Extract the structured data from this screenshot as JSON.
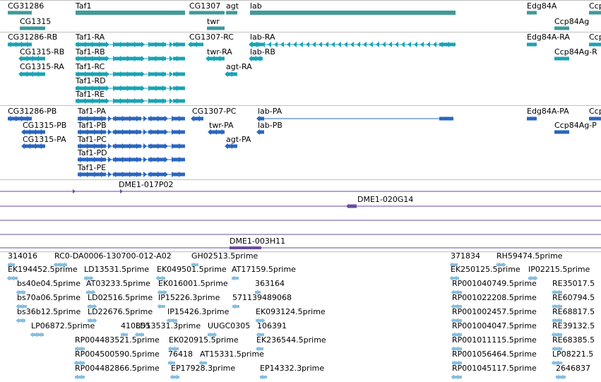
{
  "colors": {
    "gene": "#3f9a9a",
    "transcript": "#1aa3b4",
    "protein": "#2a66c0",
    "clone": "#6a4aa0",
    "est": "#86bfe0",
    "divider": "#c0c0c0"
  },
  "tracks": {
    "genes": [
      {
        "label": "CG31286"
      },
      {
        "label": "Taf1"
      },
      {
        "label": "CG1307"
      },
      {
        "label": "agt"
      },
      {
        "label": "lab"
      },
      {
        "label": "Edg84A"
      },
      {
        "label": "Ccp"
      },
      {
        "label": "CG1315"
      },
      {
        "label": "twr"
      },
      {
        "label": "Ccp84Ag"
      }
    ],
    "transcripts": [
      {
        "label": "CG31286-RB"
      },
      {
        "label": "Taf1-RA"
      },
      {
        "label": "CG1307-RC"
      },
      {
        "label": "lab-RA"
      },
      {
        "label": "Edg84A-RA"
      },
      {
        "label": "Ccp"
      },
      {
        "label": "CG1315-RB"
      },
      {
        "label": "Taf1-RB"
      },
      {
        "label": "twr-RA"
      },
      {
        "label": "lab-RB"
      },
      {
        "label": "Ccp84Ag-R"
      },
      {
        "label": "CG1315-RA"
      },
      {
        "label": "Taf1-RC"
      },
      {
        "label": "agt-RA"
      },
      {
        "label": "Taf1-RD"
      },
      {
        "label": "Taf1-RE"
      }
    ],
    "proteins": [
      {
        "label": "CG31286-PB"
      },
      {
        "label": "Taf1-PA"
      },
      {
        "label": "CG1307-PC"
      },
      {
        "label": "lab-PA"
      },
      {
        "label": "Edg84A-PA"
      },
      {
        "label": "Ccp"
      },
      {
        "label": "CG1315-PB"
      },
      {
        "label": "Taf1-PB"
      },
      {
        "label": "twr-PA"
      },
      {
        "label": "lab-PB"
      },
      {
        "label": "Ccp84Ag-P"
      },
      {
        "label": "CG1315-PA"
      },
      {
        "label": "Taf1-PC"
      },
      {
        "label": "agt-PA"
      },
      {
        "label": "Taf1-PD"
      },
      {
        "label": "Taf1-PE"
      }
    ],
    "clones": [
      {
        "label": "DME1-017P02"
      },
      {
        "label": "DME1-020G14"
      },
      {
        "label": "DME1-003H11"
      }
    ],
    "ests": [
      {
        "label": "314016"
      },
      {
        "label": "RC0-DA0006-130700-012-A02"
      },
      {
        "label": "GH02513.5prime"
      },
      {
        "label": "371834"
      },
      {
        "label": "RH59474.5prime"
      },
      {
        "label": "EK194452.5prime"
      },
      {
        "label": "LD13531.5prime"
      },
      {
        "label": "EK049501.5prime"
      },
      {
        "label": "AT17159.5prime"
      },
      {
        "label": "EK250125.5prime"
      },
      {
        "label": "IP02215.5prime"
      },
      {
        "label": "bs40e04.5prime"
      },
      {
        "label": "AT03233.5prime"
      },
      {
        "label": "EK016001.5prime"
      },
      {
        "label": "363164"
      },
      {
        "label": "RP001040749.5prime"
      },
      {
        "label": "RE35017.5"
      },
      {
        "label": "bs70a06.5prime"
      },
      {
        "label": "LD02516.5prime"
      },
      {
        "label": "IP15226.3prime"
      },
      {
        "label": "571139489068"
      },
      {
        "label": "RP001022208.5prime"
      },
      {
        "label": "RE60794.5"
      },
      {
        "label": "bs36b12.5prime"
      },
      {
        "label": "LD22676.5prime"
      },
      {
        "label": "IP15426.3prime"
      },
      {
        "label": "EK093124.5prime"
      },
      {
        "label": "RP001002457.5prime"
      },
      {
        "label": "RE68817.5"
      },
      {
        "label": "LP06872.5prime"
      },
      {
        "label": "410855"
      },
      {
        "label": "LD13531.3prime"
      },
      {
        "label": "UUGC0305"
      },
      {
        "label": "106391"
      },
      {
        "label": "RP001004047.5prime"
      },
      {
        "label": "RE39132.5"
      },
      {
        "label": "RP004483521.5prime"
      },
      {
        "label": "EK020915.5prime"
      },
      {
        "label": "EK236544.5prime"
      },
      {
        "label": "RP001011115.5prime"
      },
      {
        "label": "RE68385.5"
      },
      {
        "label": "RP004500590.5prime"
      },
      {
        "label": "76418"
      },
      {
        "label": "AT15331.5prime"
      },
      {
        "label": "RP001056464.5prime"
      },
      {
        "label": "LP08221.5"
      },
      {
        "label": "RP004482866.5prime"
      },
      {
        "label": "EP17928.3prime"
      },
      {
        "label": "EP14332.3prime"
      },
      {
        "label": "RP001045117.5prime"
      },
      {
        "label": "2646837"
      }
    ]
  }
}
